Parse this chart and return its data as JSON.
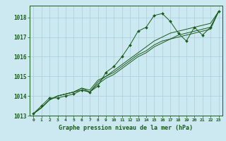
{
  "title": "Graphe pression niveau de la mer (hPa)",
  "bg_color": "#cce8f0",
  "plot_bg_color": "#cce8f0",
  "grid_color": "#a8cdd8",
  "line_color": "#1a5c1a",
  "label_bg_color": "#cce8f0",
  "xlim": [
    -0.5,
    23.5
  ],
  "ylim": [
    1013,
    1018.6
  ],
  "yticks": [
    1013,
    1014,
    1015,
    1016,
    1017,
    1018
  ],
  "xticks": [
    0,
    1,
    2,
    3,
    4,
    5,
    6,
    7,
    8,
    9,
    10,
    11,
    12,
    13,
    14,
    15,
    16,
    17,
    18,
    19,
    20,
    21,
    22,
    23
  ],
  "xtick_labels": [
    "0",
    "1",
    "2",
    "3",
    "4",
    "5",
    "6",
    "7",
    "8",
    "9",
    "10",
    "11",
    "12",
    "13",
    "14",
    "15",
    "16",
    "17",
    "18",
    "19",
    "20",
    "21",
    "22",
    "23"
  ],
  "series": [
    [
      1013.1,
      1013.5,
      1013.9,
      1013.9,
      1014.0,
      1014.1,
      1014.3,
      1014.2,
      1014.5,
      1015.2,
      1015.5,
      1016.0,
      1016.6,
      1017.3,
      1017.5,
      1018.1,
      1018.2,
      1017.8,
      1017.2,
      1016.8,
      1017.5,
      1017.1,
      1017.5,
      1018.3
    ],
    [
      1013.1,
      1013.4,
      1013.8,
      1014.0,
      1014.1,
      1014.2,
      1014.4,
      1014.3,
      1014.8,
      1015.0,
      1015.3,
      1015.6,
      1015.9,
      1016.2,
      1016.5,
      1016.8,
      1017.0,
      1017.2,
      1017.3,
      1017.4,
      1017.5,
      1017.6,
      1017.7,
      1018.3
    ],
    [
      1013.1,
      1013.4,
      1013.8,
      1014.0,
      1014.1,
      1014.2,
      1014.4,
      1014.2,
      1014.7,
      1015.0,
      1015.2,
      1015.5,
      1015.8,
      1016.1,
      1016.3,
      1016.6,
      1016.8,
      1016.9,
      1017.1,
      1017.2,
      1017.3,
      1017.4,
      1017.5,
      1018.3
    ],
    [
      1013.1,
      1013.4,
      1013.8,
      1014.0,
      1014.1,
      1014.2,
      1014.3,
      1014.2,
      1014.6,
      1014.9,
      1015.1,
      1015.4,
      1015.7,
      1016.0,
      1016.2,
      1016.5,
      1016.7,
      1016.9,
      1017.0,
      1017.1,
      1017.2,
      1017.3,
      1017.4,
      1018.3
    ]
  ],
  "marker_series_idx": 0,
  "marker": "D",
  "marker_size": 2.0,
  "linewidth": 0.7
}
